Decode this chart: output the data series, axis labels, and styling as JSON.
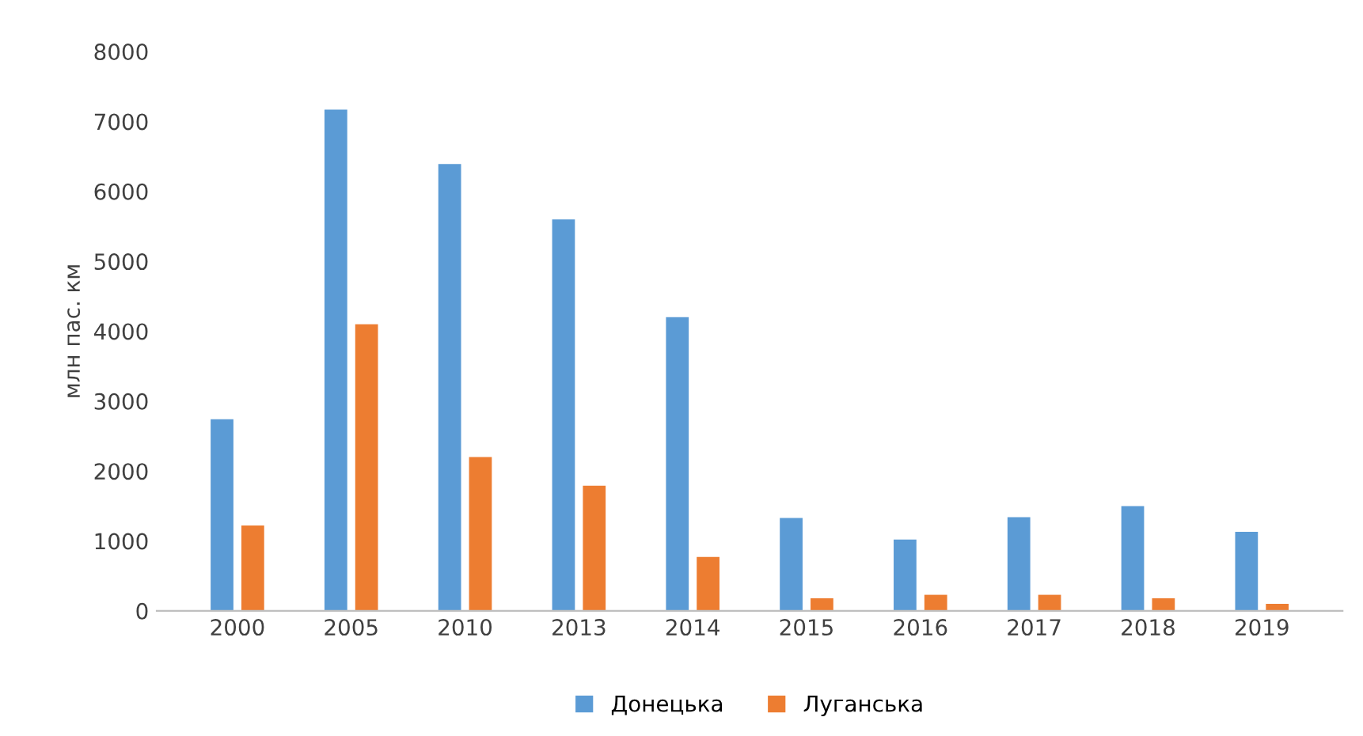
{
  "chart_data": {
    "type": "bar",
    "ylabel": "млн пас. км",
    "categories": [
      "2000",
      "2005",
      "2010",
      "2013",
      "2014",
      "2015",
      "2016",
      "2017",
      "2018",
      "2019"
    ],
    "series": [
      {
        "name": "Донецька",
        "color": "#5b9bd5",
        "values": [
          2740,
          7170,
          6390,
          5600,
          4200,
          1330,
          1020,
          1340,
          1500,
          1130
        ]
      },
      {
        "name": "Луганська",
        "color": "#ed7d31",
        "values": [
          1220,
          4100,
          2200,
          1790,
          770,
          180,
          230,
          230,
          180,
          100
        ]
      }
    ],
    "ylim": [
      0,
      8000
    ],
    "yticks": [
      0,
      1000,
      2000,
      3000,
      4000,
      5000,
      6000,
      7000,
      8000
    ],
    "grid": false,
    "legend": "bottom"
  }
}
